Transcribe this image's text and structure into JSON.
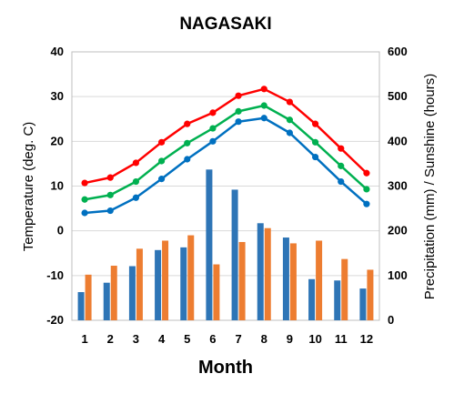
{
  "chart_data": {
    "type": "bar+line",
    "title": "NAGASAKI",
    "xlabel": "Month",
    "ylabel_left": "Temperature (deg. C)",
    "ylabel_right": "Precipitation (mm) / Sunshine (hours)",
    "categories": [
      "1",
      "2",
      "3",
      "4",
      "5",
      "6",
      "7",
      "8",
      "9",
      "10",
      "11",
      "12"
    ],
    "y_left": {
      "min": -20,
      "max": 40,
      "ticks": [
        -20,
        -10,
        0,
        10,
        20,
        30,
        40
      ]
    },
    "y_right": {
      "min": 0,
      "max": 600,
      "ticks": [
        0,
        100,
        200,
        300,
        400,
        500,
        600
      ]
    },
    "grid": true,
    "bar_series": [
      {
        "color": "#2e75b6",
        "axis": "right",
        "values": [
          63,
          84,
          121,
          157,
          163,
          337,
          292,
          217,
          185,
          92,
          89,
          71
        ]
      },
      {
        "color": "#ed7d31",
        "axis": "right",
        "values": [
          102,
          122,
          160,
          178,
          190,
          125,
          175,
          206,
          172,
          178,
          137,
          113
        ]
      }
    ],
    "line_series": [
      {
        "color": "#ff0000",
        "axis": "left",
        "values": [
          10.7,
          11.9,
          15.2,
          19.8,
          23.9,
          26.4,
          30.2,
          31.7,
          28.8,
          23.9,
          18.4,
          12.9
        ]
      },
      {
        "color": "#00b050",
        "axis": "left",
        "values": [
          7.0,
          8.0,
          11.0,
          15.6,
          19.6,
          22.9,
          26.7,
          28.0,
          24.8,
          19.8,
          14.5,
          9.3
        ]
      },
      {
        "color": "#0070c0",
        "axis": "left",
        "values": [
          4.0,
          4.5,
          7.4,
          11.6,
          16.0,
          20.0,
          24.4,
          25.2,
          21.9,
          16.5,
          11.0,
          6.0
        ]
      }
    ]
  }
}
